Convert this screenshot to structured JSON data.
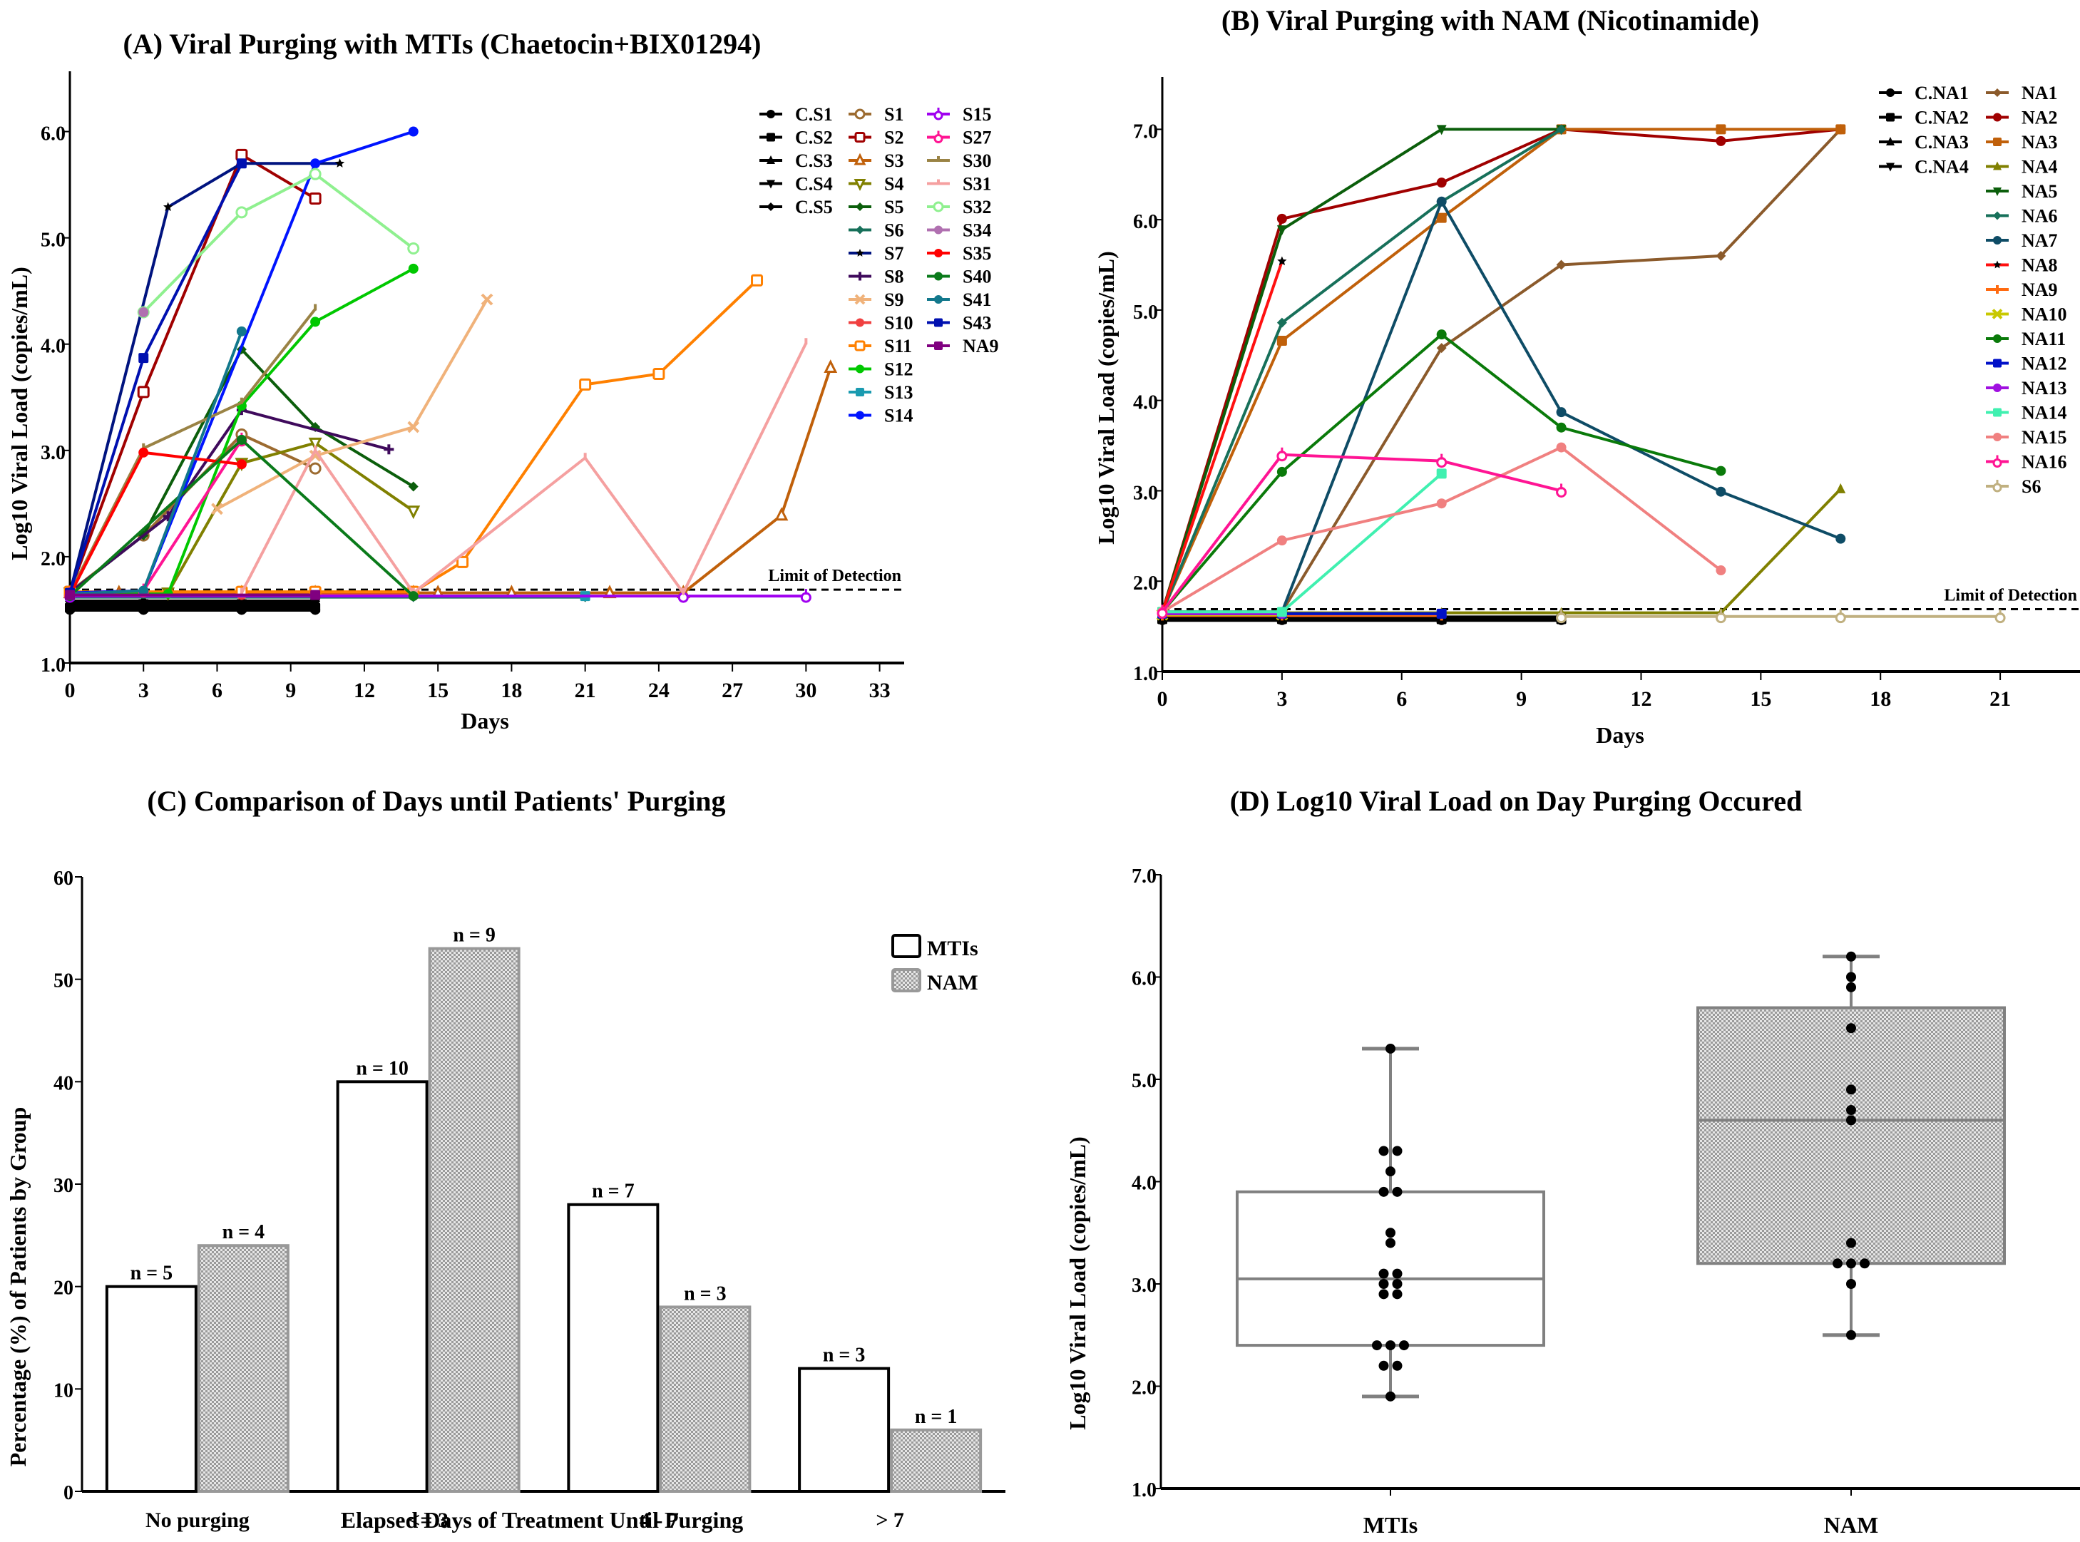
{
  "chart_data": [
    {
      "id": "A",
      "type": "line",
      "title": "(A) Viral Purging with MTIs (Chaetocin+BIX01294)",
      "xlabel": "Days",
      "ylabel": "Log10 Viral Load (copies/mL)",
      "xlim": [
        0,
        34
      ],
      "ylim": [
        1.0,
        6.5
      ],
      "xticks": [
        0,
        3,
        6,
        9,
        12,
        15,
        18,
        21,
        24,
        27,
        30,
        33
      ],
      "yticks": [
        1.0,
        2.0,
        3.0,
        4.0,
        5.0,
        6.0
      ],
      "ytick_labels": [
        "1.0",
        "2.0",
        "3.0",
        "4.0",
        "5.0",
        "6.0"
      ],
      "grid": false,
      "legend_position": "top-right",
      "legend_columns": 3,
      "reference_line": {
        "label": "Limit of Detection",
        "y": 1.69
      },
      "series": [
        {
          "name": "C.S1",
          "color": "#000000",
          "marker": "circle",
          "x": [
            0,
            3,
            7,
            10
          ],
          "y": [
            1.5,
            1.5,
            1.5,
            1.5
          ]
        },
        {
          "name": "C.S2",
          "color": "#000000",
          "marker": "square",
          "x": [
            0,
            3,
            7,
            10
          ],
          "y": [
            1.52,
            1.52,
            1.52,
            1.52
          ]
        },
        {
          "name": "C.S3",
          "color": "#000000",
          "marker": "triangle-up",
          "x": [
            0,
            3,
            7,
            10
          ],
          "y": [
            1.54,
            1.54,
            1.54,
            1.54
          ]
        },
        {
          "name": "C.S4",
          "color": "#000000",
          "marker": "triangle-down",
          "x": [
            0,
            3,
            7,
            10
          ],
          "y": [
            1.56,
            1.56,
            1.56,
            1.56
          ]
        },
        {
          "name": "C.S5",
          "color": "#000000",
          "marker": "diamond",
          "x": [
            0,
            3,
            7,
            10
          ],
          "y": [
            1.58,
            1.58,
            1.58,
            1.58
          ]
        },
        {
          "name": "S1",
          "color": "#9C6B30",
          "marker": "circle-open",
          "x": [
            0,
            3,
            7,
            10
          ],
          "y": [
            1.67,
            2.2,
            3.15,
            2.83
          ]
        },
        {
          "name": "S2",
          "color": "#A00000",
          "marker": "square-open",
          "x": [
            0,
            3,
            7,
            10
          ],
          "y": [
            1.67,
            3.55,
            5.78,
            5.37
          ]
        },
        {
          "name": "S3",
          "color": "#C0600A",
          "marker": "triangle-open",
          "x": [
            0,
            2,
            7,
            10,
            14,
            15,
            18,
            22,
            25,
            29,
            31
          ],
          "y": [
            1.66,
            1.66,
            1.66,
            1.66,
            1.66,
            1.66,
            1.66,
            1.66,
            1.66,
            2.39,
            3.78
          ]
        },
        {
          "name": "S4",
          "color": "#808000",
          "marker": "triangle-down-open",
          "x": [
            0,
            4,
            7,
            10,
            14
          ],
          "y": [
            1.66,
            1.66,
            2.88,
            3.07,
            2.43
          ]
        },
        {
          "name": "S5",
          "color": "#0B5E0B",
          "marker": "diamond",
          "x": [
            0,
            3,
            7,
            10,
            14
          ],
          "y": [
            1.66,
            2.2,
            3.95,
            3.22,
            2.66
          ]
        },
        {
          "name": "S6",
          "color": "#17705A",
          "marker": "diamond",
          "x": [
            0,
            14,
            21
          ],
          "y": [
            1.62,
            1.62,
            1.62
          ]
        },
        {
          "name": "S7",
          "color": "#00137F",
          "marker": "star",
          "x": [
            0,
            4,
            7,
            11
          ],
          "y": [
            1.66,
            5.29,
            5.7,
            5.7
          ]
        },
        {
          "name": "S8",
          "color": "#3F0A5C",
          "marker": "plus",
          "x": [
            0,
            4,
            7,
            13
          ],
          "y": [
            1.66,
            2.38,
            3.38,
            3.01
          ]
        },
        {
          "name": "S9",
          "color": "#F0B27A",
          "marker": "cross",
          "x": [
            6,
            10,
            14,
            17
          ],
          "y": [
            2.45,
            2.95,
            3.22,
            4.42
          ]
        },
        {
          "name": "S10",
          "color": "#F04040",
          "marker": "circle",
          "x": [
            0,
            7,
            14
          ],
          "y": [
            1.64,
            1.64,
            1.64
          ]
        },
        {
          "name": "S11",
          "color": "#FF8000",
          "marker": "square-open",
          "x": [
            0,
            7,
            10,
            14,
            16,
            21,
            24,
            28
          ],
          "y": [
            1.67,
            1.67,
            1.67,
            1.67,
            1.95,
            3.62,
            3.72,
            4.6
          ]
        },
        {
          "name": "S12",
          "color": "#00C800",
          "marker": "circle",
          "x": [
            0,
            4,
            7,
            10,
            14
          ],
          "y": [
            1.65,
            1.65,
            3.42,
            4.21,
            4.71
          ]
        },
        {
          "name": "S13",
          "color": "#1A9BB0",
          "marker": "square",
          "x": [
            0,
            21
          ],
          "y": [
            1.63,
            1.63
          ]
        },
        {
          "name": "S14",
          "color": "#0014FF",
          "marker": "circle",
          "x": [
            0,
            3,
            10,
            14
          ],
          "y": [
            1.66,
            1.68,
            5.7,
            6.0
          ]
        },
        {
          "name": "S15",
          "color": "#A000F0",
          "marker": "circle-open-plus",
          "x": [
            0,
            25,
            30
          ],
          "y": [
            1.63,
            1.63,
            1.63
          ]
        },
        {
          "name": "S27",
          "color": "#FF1493",
          "marker": "circle-open-plus",
          "x": [
            0,
            3,
            7
          ],
          "y": [
            1.65,
            1.68,
            3.1
          ]
        },
        {
          "name": "S30",
          "color": "#9A8345",
          "marker": "tee",
          "x": [
            0,
            3,
            7,
            10
          ],
          "y": [
            1.66,
            3.02,
            3.45,
            4.33
          ]
        },
        {
          "name": "S31",
          "color": "#F5A0A0",
          "marker": "tee",
          "x": [
            7,
            10,
            14,
            21,
            25,
            30
          ],
          "y": [
            1.66,
            3.0,
            1.66,
            2.93,
            1.66,
            4.01
          ]
        },
        {
          "name": "S32",
          "color": "#8FF08F",
          "marker": "circle-open",
          "x": [
            3,
            7,
            10,
            14
          ],
          "y": [
            4.3,
            5.24,
            5.6,
            4.9
          ]
        },
        {
          "name": "S34",
          "color": "#B070B0",
          "marker": "circle",
          "x": [
            3
          ],
          "y": [
            4.3
          ]
        },
        {
          "name": "S35",
          "color": "#FF0000",
          "marker": "circle",
          "x": [
            0,
            3,
            7
          ],
          "y": [
            1.64,
            2.98,
            2.87
          ]
        },
        {
          "name": "S40",
          "color": "#0A7A1A",
          "marker": "circle",
          "x": [
            0,
            7,
            14
          ],
          "y": [
            1.63,
            3.1,
            1.63
          ]
        },
        {
          "name": "S41",
          "color": "#12788C",
          "marker": "circle",
          "x": [
            0,
            3,
            7
          ],
          "y": [
            1.65,
            1.68,
            4.12
          ]
        },
        {
          "name": "S43",
          "color": "#0010B0",
          "marker": "square",
          "x": [
            0,
            3,
            7
          ],
          "y": [
            1.66,
            3.87,
            5.7
          ]
        },
        {
          "name": "NA9",
          "color": "#800080",
          "marker": "square",
          "x": [
            0,
            10
          ],
          "y": [
            1.64,
            1.64
          ]
        }
      ]
    },
    {
      "id": "B",
      "type": "line",
      "title": "(B) Viral Purging with NAM (Nicotinamide)",
      "xlabel": "Days",
      "ylabel": "Log10 Viral Load (copies/mL)",
      "xlim": [
        0,
        23
      ],
      "ylim": [
        1.0,
        7.5
      ],
      "xticks": [
        0,
        3,
        6,
        9,
        12,
        15,
        18,
        21
      ],
      "yticks": [
        1.0,
        2.0,
        3.0,
        4.0,
        5.0,
        6.0,
        7.0
      ],
      "ytick_labels": [
        "1.0",
        "2.0",
        "3.0",
        "4.0",
        "5.0",
        "6.0",
        "7.0"
      ],
      "grid": false,
      "legend_position": "top-right",
      "legend_columns": 2,
      "reference_line": {
        "label": "Limit of Detection",
        "y": 1.69
      },
      "series": [
        {
          "name": "C.NA1",
          "color": "#000000",
          "marker": "circle",
          "x": [
            0,
            3,
            7,
            10
          ],
          "y": [
            1.57,
            1.57,
            1.57,
            1.57
          ]
        },
        {
          "name": "C.NA2",
          "color": "#000000",
          "marker": "square",
          "x": [
            0,
            3,
            7,
            10
          ],
          "y": [
            1.58,
            1.58,
            1.58,
            1.58
          ]
        },
        {
          "name": "C.NA3",
          "color": "#000000",
          "marker": "triangle-up",
          "x": [
            0,
            3,
            7,
            10
          ],
          "y": [
            1.59,
            1.59,
            1.59,
            1.59
          ]
        },
        {
          "name": "C.NA4",
          "color": "#000000",
          "marker": "triangle-down",
          "x": [
            0,
            3,
            7,
            10
          ],
          "y": [
            1.6,
            1.6,
            1.6,
            1.6
          ]
        },
        {
          "name": "NA1",
          "color": "#8B5A2B",
          "marker": "diamond",
          "x": [
            0,
            3,
            7,
            10,
            14,
            17
          ],
          "y": [
            1.66,
            1.66,
            4.58,
            5.5,
            5.6,
            7.0
          ]
        },
        {
          "name": "NA2",
          "color": "#A00000",
          "marker": "circle",
          "x": [
            0,
            3,
            7,
            10,
            14,
            17
          ],
          "y": [
            1.66,
            6.01,
            6.41,
            7.0,
            6.87,
            7.0
          ]
        },
        {
          "name": "NA3",
          "color": "#C0600A",
          "marker": "square",
          "x": [
            0,
            3,
            7,
            10,
            14,
            17
          ],
          "y": [
            1.66,
            4.66,
            6.02,
            7.0,
            7.0,
            7.0
          ]
        },
        {
          "name": "NA4",
          "color": "#808000",
          "marker": "triangle-up",
          "x": [
            0,
            3,
            7,
            10,
            14,
            17
          ],
          "y": [
            1.65,
            1.65,
            1.65,
            1.65,
            1.65,
            3.02
          ]
        },
        {
          "name": "NA5",
          "color": "#0B5E0B",
          "marker": "triangle-down",
          "x": [
            0,
            3,
            7,
            10
          ],
          "y": [
            1.66,
            5.89,
            7.0,
            7.0
          ]
        },
        {
          "name": "NA6",
          "color": "#17705A",
          "marker": "diamond",
          "x": [
            0,
            3,
            7,
            10
          ],
          "y": [
            1.66,
            4.86,
            6.2,
            7.0
          ]
        },
        {
          "name": "NA7",
          "color": "#0E4C66",
          "marker": "circle",
          "x": [
            0,
            3,
            7,
            10,
            14,
            17
          ],
          "y": [
            1.66,
            1.66,
            6.2,
            3.87,
            2.99,
            2.47
          ]
        },
        {
          "name": "NA8",
          "color": "#FF1010",
          "marker": "star",
          "x": [
            0,
            3
          ],
          "y": [
            1.66,
            5.54
          ]
        },
        {
          "name": "NA9",
          "color": "#FF6A10",
          "marker": "plus",
          "x": [
            0,
            3,
            7
          ],
          "y": [
            1.62,
            1.62,
            1.62
          ]
        },
        {
          "name": "NA10",
          "color": "#C8C800",
          "marker": "cross",
          "x": [
            0,
            3
          ],
          "y": [
            1.63,
            1.63
          ]
        },
        {
          "name": "NA11",
          "color": "#0A7A0A",
          "marker": "circle",
          "x": [
            0,
            3,
            7,
            10,
            14
          ],
          "y": [
            1.66,
            3.21,
            4.73,
            3.7,
            3.22
          ]
        },
        {
          "name": "NA12",
          "color": "#0010C8",
          "marker": "square",
          "x": [
            0,
            3,
            7
          ],
          "y": [
            1.64,
            1.64,
            1.64
          ]
        },
        {
          "name": "NA13",
          "color": "#A010E0",
          "marker": "circle",
          "x": [
            0,
            3
          ],
          "y": [
            1.64,
            1.64
          ]
        },
        {
          "name": "NA14",
          "color": "#40F0B0",
          "marker": "square",
          "x": [
            0,
            3,
            7
          ],
          "y": [
            1.66,
            1.66,
            3.19
          ]
        },
        {
          "name": "NA15",
          "color": "#F08080",
          "marker": "circle",
          "x": [
            0,
            3,
            7,
            10,
            14
          ],
          "y": [
            1.66,
            2.45,
            2.86,
            3.48,
            2.12
          ]
        },
        {
          "name": "NA16",
          "color": "#FF1493",
          "marker": "circle-open-plus",
          "x": [
            0,
            3,
            7,
            10
          ],
          "y": [
            1.66,
            3.4,
            3.33,
            3.0
          ]
        },
        {
          "name": "S6",
          "color": "#C0B080",
          "marker": "circle-open-plus",
          "x": [
            10,
            14,
            17,
            21
          ],
          "y": [
            1.61,
            1.61,
            1.61,
            1.61
          ]
        }
      ]
    },
    {
      "id": "C",
      "type": "bar",
      "title": "(C) Comparison of Days until Patients' Purging",
      "xlabel": "Elapsed Days of Treatment Until Purging",
      "ylabel": "Percentage (%) of Patients by Group",
      "ylim": [
        0,
        60
      ],
      "yticks": [
        0,
        10,
        20,
        30,
        40,
        50,
        60
      ],
      "grid": false,
      "legend_position": "top-right",
      "categories": [
        "No purging",
        "<= 3",
        "4 - 7",
        "> 7"
      ],
      "series": [
        {
          "name": "MTIs",
          "fill": "white",
          "stroke": "#000000",
          "values": [
            20,
            40,
            28,
            12
          ],
          "labels": [
            "n = 5",
            "n = 10",
            "n = 7",
            "n = 3"
          ]
        },
        {
          "name": "NAM",
          "fill": "stipple",
          "stroke": "#999999",
          "values": [
            24,
            53,
            18,
            6
          ],
          "labels": [
            "n = 4",
            "n = 9",
            "n = 3",
            "n = 1"
          ]
        }
      ]
    },
    {
      "id": "D",
      "type": "box",
      "title": "(D) Log10 Viral Load on Day Purging Occured",
      "xlabel": "",
      "ylabel": "Log10 Viral Load (copies/mL)",
      "ylim": [
        1.0,
        7.0
      ],
      "yticks": [
        1.0,
        2.0,
        3.0,
        4.0,
        5.0,
        6.0,
        7.0
      ],
      "ytick_labels": [
        "1.0",
        "2.0",
        "3.0",
        "4.0",
        "5.0",
        "6.0",
        "7.0"
      ],
      "grid": false,
      "categories": [
        "MTIs",
        "NAM"
      ],
      "boxes": [
        {
          "name": "MTIs",
          "fill": "white",
          "min": 1.9,
          "q1": 2.4,
          "median": 3.05,
          "q3": 3.9,
          "max": 5.3,
          "points": [
            5.3,
            4.3,
            4.3,
            4.1,
            3.9,
            3.9,
            3.5,
            3.4,
            3.1,
            3.1,
            3.0,
            3.0,
            2.9,
            2.9,
            2.4,
            2.4,
            2.4,
            2.2,
            2.2,
            1.9
          ]
        },
        {
          "name": "NAM",
          "fill": "stipple",
          "min": 2.5,
          "q1": 3.2,
          "median": 4.6,
          "q3": 5.7,
          "max": 6.2,
          "points": [
            6.2,
            6.0,
            5.9,
            5.5,
            4.9,
            4.7,
            4.6,
            3.4,
            3.2,
            3.2,
            3.2,
            3.0,
            2.5
          ]
        }
      ]
    }
  ]
}
